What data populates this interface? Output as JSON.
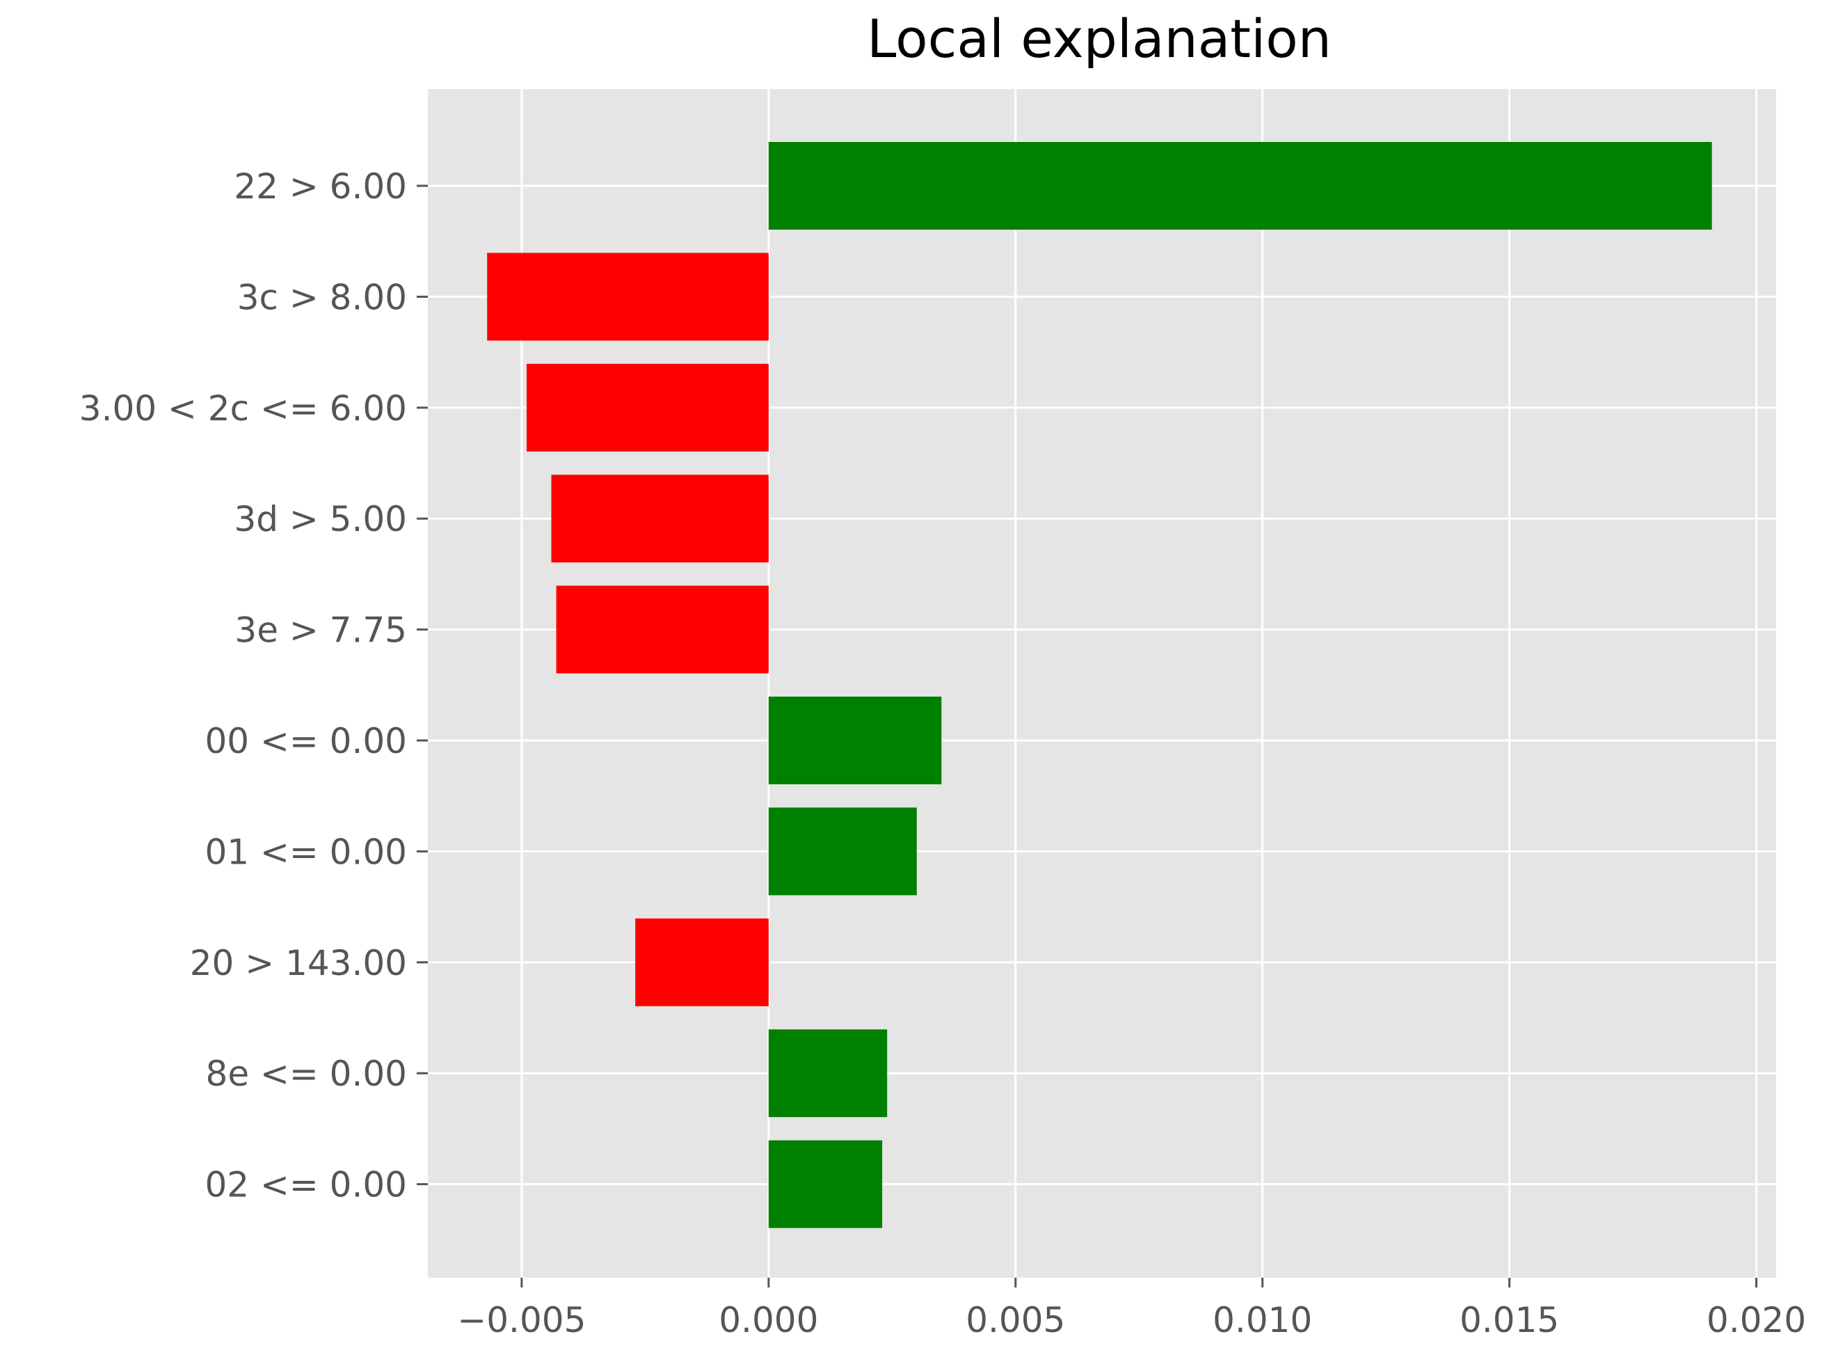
{
  "chart_data": {
    "type": "bar",
    "orientation": "horizontal",
    "title": "Local explanation",
    "xlabel": "",
    "ylabel": "",
    "categories": [
      "22 > 6.00",
      "3c > 8.00",
      "3.00 < 2c <= 6.00",
      "3d > 5.00",
      "3e > 7.75",
      "00 <= 0.00",
      "01 <= 0.00",
      "20 > 143.00",
      "8e <= 0.00",
      "02 <= 0.00"
    ],
    "values": [
      0.0191,
      -0.0057,
      -0.0049,
      -0.0044,
      -0.0043,
      0.0035,
      0.003,
      -0.0027,
      0.0024,
      0.0023
    ],
    "xlim": [
      -0.0069,
      0.0204
    ],
    "xticks": [
      -0.005,
      0.0,
      0.005,
      0.01,
      0.015,
      0.02
    ],
    "xtick_labels": [
      "−0.005",
      "0.000",
      "0.005",
      "0.010",
      "0.015",
      "0.020"
    ],
    "grid": true,
    "legend": "none",
    "colors": {
      "positive": "#008000",
      "negative": "#ff0000",
      "plot_background": "#e5e5e5",
      "grid": "#ffffff",
      "tick_label": "#555555",
      "title": "#000000"
    }
  }
}
